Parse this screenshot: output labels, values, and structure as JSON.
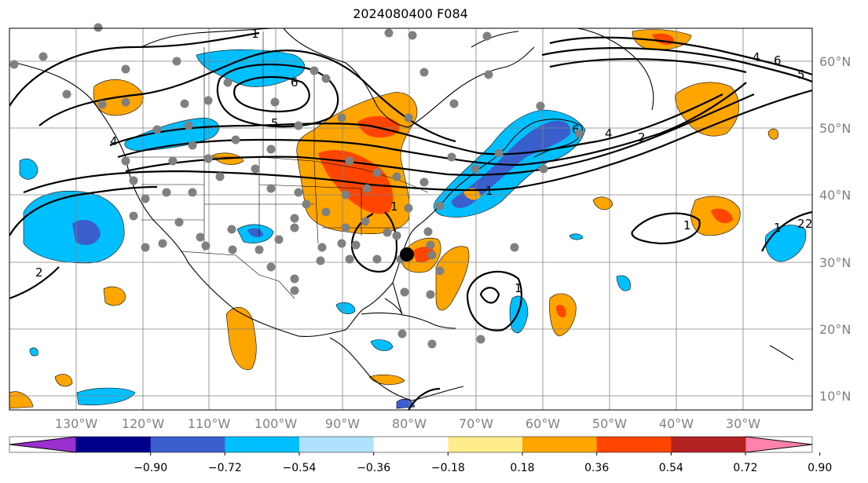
{
  "title": "2024080400 F084",
  "lon_labels": [
    "130°W",
    "120°W",
    "110°W",
    "100°W",
    "90°W",
    "80°W",
    "70°W",
    "60°W",
    "50°W",
    "40°W",
    "30°W"
  ],
  "lat_labels": [
    "60°N",
    "50°N",
    "40°N",
    "30°N",
    "20°N",
    "10°N"
  ],
  "colorbar": {
    "colors": [
      "#9b30d0",
      "#00008b",
      "#3a5fcd",
      "#00bfff",
      "#b0e2ff",
      "#ffffff",
      "#ffec8b",
      "#ffa500",
      "#ff4500",
      "#b22222",
      "#ff82ab"
    ],
    "ticks": [
      "−0.90",
      "−0.72",
      "−0.54",
      "−0.36",
      "−0.18",
      "0.18",
      "0.36",
      "0.54",
      "0.72",
      "0.90"
    ]
  },
  "palette": {
    "grid": "#808080",
    "station": "#808080",
    "contour": "#000000",
    "marker": "#000000"
  },
  "contour_labels": [
    "1",
    "4",
    "6",
    "5",
    "4",
    "2",
    "1",
    "4",
    "6",
    "5",
    "2",
    "1",
    "1",
    "1",
    "2",
    "2",
    "1",
    "6"
  ]
}
